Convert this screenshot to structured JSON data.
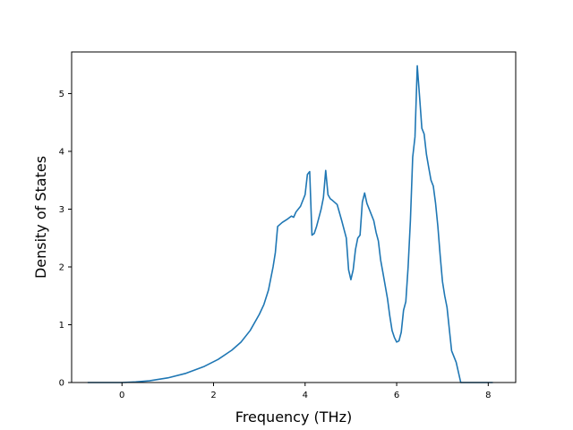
{
  "chart_data": {
    "type": "line",
    "title": "",
    "xlabel": "Frequency (THz)",
    "ylabel": "Density of States",
    "xlim": [
      -1.1,
      8.6
    ],
    "ylim": [
      0,
      5.72
    ],
    "xticks": [
      0,
      2,
      4,
      6,
      8
    ],
    "xtick_labels": [
      "0",
      "2",
      "4",
      "6",
      "8"
    ],
    "yticks": [
      0,
      1,
      2,
      3,
      4,
      5
    ],
    "ytick_labels": [
      "0",
      "1",
      "2",
      "3",
      "4",
      "5"
    ],
    "grid": false,
    "colors": {
      "line": "#1f77b4",
      "axes": "#000000",
      "background": "#ffffff"
    },
    "series": [
      {
        "x": [
          -0.75,
          -0.4,
          0.0,
          0.3,
          0.6,
          1.0,
          1.4,
          1.8,
          2.1,
          2.4,
          2.6,
          2.8,
          3.0,
          3.1,
          3.2,
          3.3,
          3.35,
          3.4,
          3.5,
          3.6,
          3.7,
          3.75,
          3.8,
          3.9,
          4.0,
          4.05,
          4.1,
          4.15,
          4.2,
          4.25,
          4.3,
          4.35,
          4.4,
          4.45,
          4.5,
          4.55,
          4.6,
          4.7,
          4.8,
          4.85,
          4.9,
          4.95,
          5.0,
          5.05,
          5.1,
          5.15,
          5.2,
          5.25,
          5.3,
          5.35,
          5.4,
          5.5,
          5.55,
          5.6,
          5.65,
          5.7,
          5.8,
          5.85,
          5.9,
          5.95,
          6.0,
          6.05,
          6.1,
          6.15,
          6.2,
          6.25,
          6.3,
          6.35,
          6.4,
          6.45,
          6.5,
          6.55,
          6.6,
          6.65,
          6.7,
          6.75,
          6.8,
          6.85,
          6.9,
          6.95,
          7.0,
          7.05,
          7.1,
          7.2,
          7.3,
          7.4,
          7.5,
          7.8,
          8.1
        ],
        "y": [
          0.0,
          0.0,
          0.0,
          0.01,
          0.03,
          0.08,
          0.16,
          0.28,
          0.4,
          0.56,
          0.7,
          0.9,
          1.18,
          1.35,
          1.6,
          2.0,
          2.25,
          2.7,
          2.77,
          2.82,
          2.88,
          2.86,
          2.95,
          3.05,
          3.25,
          3.6,
          3.65,
          2.55,
          2.58,
          2.7,
          2.85,
          3.0,
          3.2,
          3.67,
          3.25,
          3.18,
          3.15,
          3.08,
          2.8,
          2.65,
          2.5,
          1.95,
          1.78,
          1.95,
          2.3,
          2.5,
          2.55,
          3.12,
          3.28,
          3.1,
          3.0,
          2.8,
          2.6,
          2.45,
          2.12,
          1.9,
          1.45,
          1.15,
          0.9,
          0.78,
          0.7,
          0.72,
          0.87,
          1.25,
          1.4,
          2.0,
          2.8,
          3.9,
          4.25,
          5.48,
          4.95,
          4.4,
          4.3,
          3.95,
          3.72,
          3.5,
          3.4,
          3.1,
          2.7,
          2.2,
          1.75,
          1.5,
          1.3,
          0.55,
          0.35,
          0.0,
          0.0,
          0.0,
          0.0
        ]
      }
    ]
  }
}
